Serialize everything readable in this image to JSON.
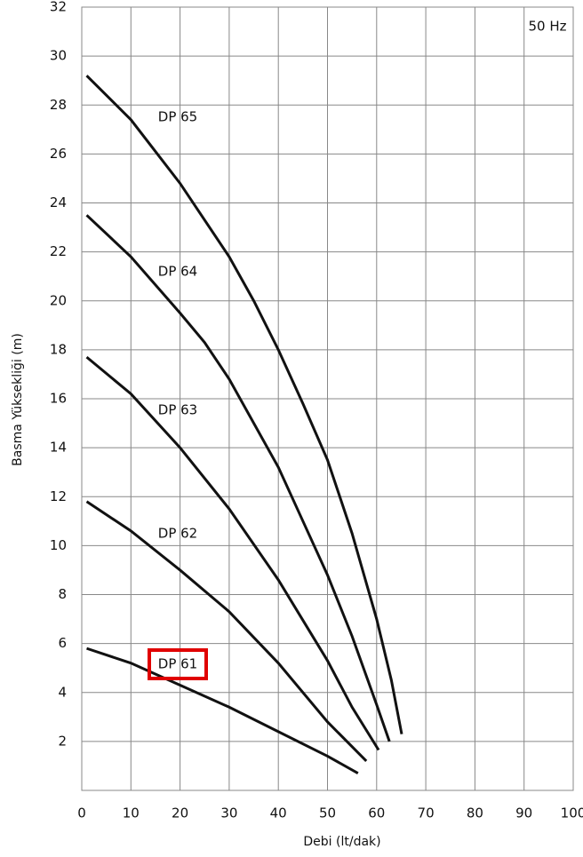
{
  "chart_data": {
    "type": "line",
    "annotation": "50 Hz",
    "xlabel": "Debi (lt/dak)",
    "ylabel": "Basma Yüksekliği (m)",
    "xlim": [
      0,
      100
    ],
    "ylim": [
      0,
      32
    ],
    "xticks": [
      0,
      10,
      20,
      30,
      40,
      50,
      60,
      70,
      80,
      90,
      100
    ],
    "yticks": [
      2,
      4,
      6,
      8,
      10,
      12,
      14,
      16,
      18,
      20,
      22,
      24,
      26,
      28,
      30,
      32
    ],
    "grid": true,
    "highlight_series": 4,
    "series": [
      {
        "name": "DP 65",
        "color": "#111111",
        "x": [
          1,
          10,
          20,
          30,
          35,
          40,
          45,
          50,
          55,
          60,
          63,
          65.1
        ],
        "values": [
          29.2,
          27.4,
          24.8,
          21.8,
          20,
          18,
          15.8,
          13.5,
          10.5,
          7,
          4.5,
          2.3
        ]
      },
      {
        "name": "DP 64",
        "color": "#111111",
        "x": [
          1,
          10,
          20,
          25,
          30,
          40,
          45,
          50,
          55,
          60,
          62.6
        ],
        "values": [
          23.5,
          21.8,
          19.5,
          18.3,
          16.8,
          13.2,
          11,
          8.8,
          6.3,
          3.5,
          2
        ]
      },
      {
        "name": "DP 63",
        "color": "#111111",
        "x": [
          1,
          10,
          20,
          30,
          40,
          50,
          55,
          60.4
        ],
        "values": [
          17.7,
          16.2,
          14,
          11.5,
          8.6,
          5.3,
          3.4,
          1.65
        ]
      },
      {
        "name": "DP 62",
        "color": "#111111",
        "x": [
          1,
          10,
          20,
          30,
          40,
          50,
          57.9
        ],
        "values": [
          11.8,
          10.6,
          9,
          7.3,
          5.2,
          2.8,
          1.2
        ]
      },
      {
        "name": "DP 61",
        "color": "#111111",
        "x": [
          1,
          10,
          20,
          30,
          40,
          50,
          56.2
        ],
        "values": [
          5.8,
          5.2,
          4.3,
          3.4,
          2.4,
          1.4,
          0.7
        ]
      }
    ]
  }
}
